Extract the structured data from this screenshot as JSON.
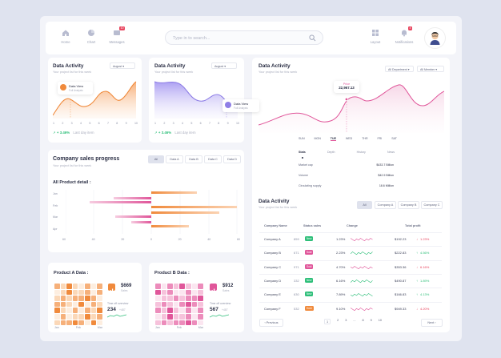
{
  "topbar": {
    "nav_left": [
      {
        "label": "Home",
        "icon": "home-icon"
      },
      {
        "label": "Chart",
        "icon": "chart-icon"
      },
      {
        "label": "Messages",
        "icon": "messages-icon",
        "badge": "10"
      }
    ],
    "search_placeholder": "Type in to search...",
    "nav_right": [
      {
        "label": "Layout",
        "icon": "layout-icon"
      },
      {
        "label": "Notifications",
        "icon": "bell-icon",
        "badge": "4"
      }
    ]
  },
  "activity_orange": {
    "title": "Data Activity",
    "subtitle": "Your project list for this week",
    "select": "August",
    "tooltip_title": "Data View",
    "tooltip_sub": "Full Analysis",
    "days": [
      "1",
      "2",
      "3",
      "4",
      "5",
      "6",
      "7",
      "8",
      "9",
      "10"
    ],
    "trend": "+ 3.46%",
    "trend_label": "Last day item"
  },
  "activity_purple": {
    "title": "Data Activity",
    "subtitle": "Your project list for this week",
    "select": "August",
    "tooltip_title": "Data View",
    "tooltip_sub": "Full Analysis",
    "days": [
      "1",
      "2",
      "3",
      "4",
      "5",
      "6",
      "7",
      "8",
      "9",
      "10"
    ],
    "trend": "+ 3.46%",
    "trend_label": "Last day item"
  },
  "sales": {
    "title": "Company sales progress",
    "subtitle": "Your project list for this week",
    "tabs": [
      "All",
      "Data A",
      "Data B",
      "Data C",
      "Data D"
    ],
    "detail_title": "All Product detail :",
    "months": [
      "Jan",
      "Feb",
      "Mar",
      "Apr"
    ],
    "x_ticks": [
      "60",
      "40",
      "20",
      "0",
      "20",
      "40",
      "60"
    ]
  },
  "product_a": {
    "title": "Product A Data :",
    "value": "$669",
    "value_sub": "Sales",
    "count": "234",
    "count_sub": "+487",
    "overview": "Time off overview",
    "months": [
      "Jan",
      "Feb",
      "Mar"
    ]
  },
  "product_b": {
    "title": "Product B Data :",
    "value": "$912",
    "value_sub": "Sales",
    "count": "567",
    "count_sub": "+487",
    "overview": "Time off overview",
    "months": [
      "Jan",
      "Feb",
      "Mar"
    ]
  },
  "big_activity": {
    "title": "Data Activity",
    "subtitle": "Your project list for this week",
    "select_dept": "All Department",
    "select_member": "All Member",
    "price_label": "Price",
    "price_value": "22,967.13",
    "weekdays": [
      "SUN",
      "MON",
      "TUE",
      "WED",
      "THR",
      "FRI",
      "SAT"
    ],
    "active_day": "TUE",
    "stat_tabs": [
      "Stats",
      "Depth",
      "History",
      "News"
    ],
    "stats": [
      {
        "label": "Market cap",
        "value": "$433.7 Billion"
      },
      {
        "label": "Volume",
        "value": "$42.9 Billion"
      },
      {
        "label": "Circulating supply",
        "value": "18.6 Million"
      }
    ]
  },
  "table_card": {
    "title": "Data Activity",
    "subtitle": "Your project list for this week",
    "tabs": [
      "All",
      "Company A",
      "Company B",
      "Company C"
    ],
    "headers": [
      "Company Name",
      "Status sales",
      "Change",
      "Total profit"
    ],
    "rows": [
      {
        "name": "Company A",
        "qty": "859",
        "status": "New",
        "change": "1.23%",
        "profit": "$192.23",
        "pct": "1.23%",
        "dir": "down"
      },
      {
        "name": "Company B",
        "qty": "671",
        "status": "Sold",
        "change": "2.23%",
        "profit": "$222.83",
        "pct": "4.56%",
        "dir": "up"
      },
      {
        "name": "Company C",
        "qty": "971",
        "status": "Sold",
        "change": "4.70%",
        "profit": "$353.36",
        "pct": "6.16%",
        "dir": "down"
      },
      {
        "name": "Company D",
        "qty": "332",
        "status": "New",
        "change": "6.16%",
        "profit": "$490.87",
        "pct": "1.89%",
        "dir": "up"
      },
      {
        "name": "Company E",
        "qty": "630",
        "status": "New",
        "change": "7.89%",
        "profit": "$166.83",
        "pct": "4.13%",
        "dir": "up"
      },
      {
        "name": "Company F",
        "qty": "532",
        "status": "Hold",
        "change": "9.10%",
        "profit": "$949.33",
        "pct": "4.20%",
        "dir": "down"
      }
    ],
    "prev": "Previous",
    "next": "Next",
    "pages": [
      "1",
      "2",
      "3",
      "...",
      "8",
      "9",
      "10"
    ]
  },
  "colors": {
    "orange": "#f08a3c",
    "purple": "#8f7fe6",
    "pink": "#e0569a",
    "green": "#2fbf7a",
    "red": "#e8455f"
  }
}
